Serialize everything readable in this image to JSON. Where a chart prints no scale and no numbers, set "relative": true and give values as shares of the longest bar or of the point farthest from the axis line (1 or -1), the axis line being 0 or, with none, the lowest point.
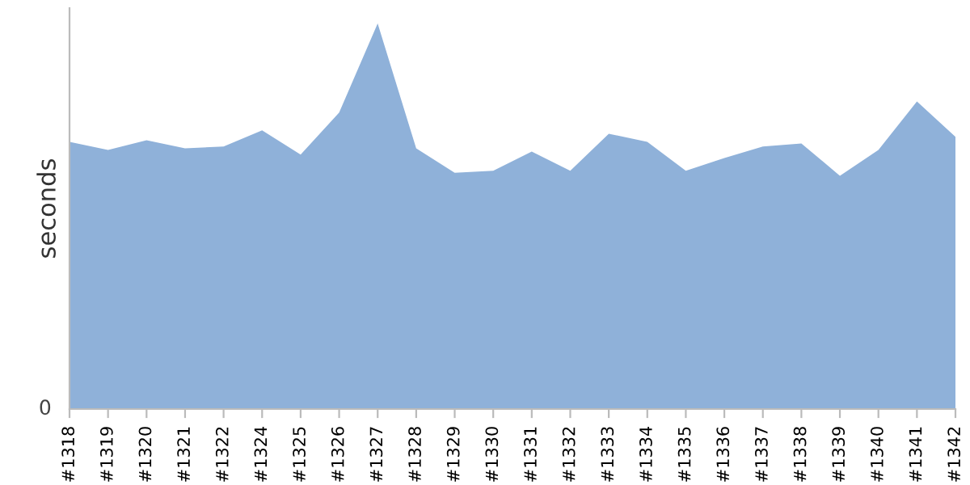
{
  "chart_data": {
    "type": "area",
    "ylabel": "seconds",
    "relative": true,
    "annotations": [
      "0"
    ],
    "categories": [
      "#1318",
      "#1319",
      "#1320",
      "#1321",
      "#1322",
      "#1324",
      "#1325",
      "#1326",
      "#1327",
      "#1328",
      "#1329",
      "#1330",
      "#1331",
      "#1332",
      "#1333",
      "#1334",
      "#1335",
      "#1336",
      "#1337",
      "#1338",
      "#1339",
      "#1340",
      "#1341",
      "#1342"
    ],
    "series": [
      {
        "color": "#8fb1d9",
        "values": [
          0.693,
          0.672,
          0.697,
          0.676,
          0.681,
          0.723,
          0.66,
          0.769,
          1.0,
          0.676,
          0.613,
          0.618,
          0.668,
          0.618,
          0.714,
          0.693,
          0.618,
          0.651,
          0.681,
          0.689,
          0.605,
          0.672,
          0.798,
          0.706
        ]
      }
    ],
    "grid": false,
    "legend": false
  }
}
